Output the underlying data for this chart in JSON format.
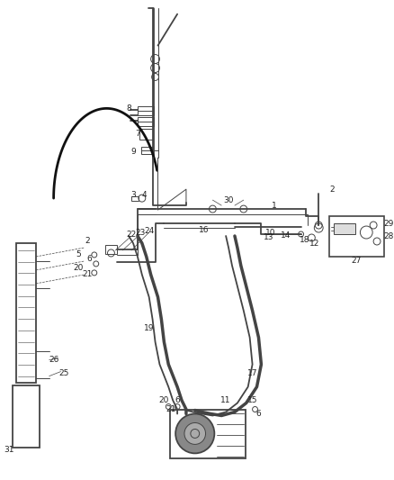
{
  "bg_color": "#ffffff",
  "line_color": "#444444",
  "fig_width": 4.38,
  "fig_height": 5.33,
  "dpi": 100,
  "lw_main": 1.3,
  "lw_thin": 0.7,
  "lw_thick": 2.0,
  "fs": 6.5
}
